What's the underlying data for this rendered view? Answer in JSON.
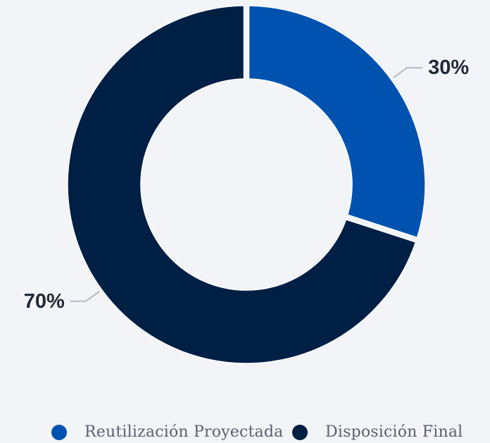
{
  "chart_data": {
    "type": "pie",
    "variant": "donut",
    "categories": [
      "Reutilización Proyectada",
      "Disposición Final"
    ],
    "values": [
      30,
      70
    ],
    "data_labels": [
      "30%",
      "70%"
    ],
    "colors": [
      "#0052b0",
      "#001f45"
    ],
    "legend": {
      "position": "bottom",
      "entries": [
        "Reutilización Proyectada",
        "Disposición Final"
      ]
    },
    "title": "",
    "start_angle": "top",
    "direction": "clockwise"
  }
}
